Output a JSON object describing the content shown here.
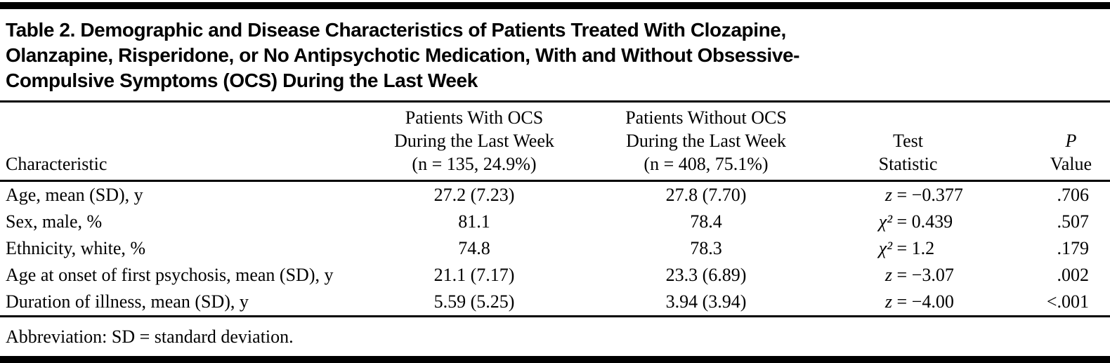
{
  "title_lines": [
    "Table 2. Demographic and Disease Characteristics of Patients Treated With Clozapine,",
    "Olanzapine, Risperidone, or No Antipsychotic Medication, With and Without Obsessive-",
    "Compulsive Symptoms (OCS) During the Last Week"
  ],
  "header": {
    "characteristic": "Characteristic",
    "with_ocs_lines": [
      "Patients With OCS",
      "During the Last Week",
      "(n = 135, 24.9%)"
    ],
    "without_ocs_lines": [
      "Patients Without OCS",
      "During the Last Week",
      "(n = 408, 75.1%)"
    ],
    "test_lines": [
      "Test",
      "Statistic"
    ],
    "p_value_lines": [
      "P",
      "Value"
    ]
  },
  "rows": [
    {
      "characteristic": "Age, mean (SD), y",
      "with_ocs": "27.2 (7.23)",
      "without_ocs": "27.8 (7.70)",
      "test_symbol": "z",
      "test_rest": " = −0.377",
      "p_value": ".706"
    },
    {
      "characteristic": "Sex, male, %",
      "with_ocs": "81.1",
      "without_ocs": "78.4",
      "test_symbol": "χ²",
      "test_rest": " = 0.439",
      "p_value": ".507"
    },
    {
      "characteristic": "Ethnicity, white, %",
      "with_ocs": "74.8",
      "without_ocs": "78.3",
      "test_symbol": "χ²",
      "test_rest": " = 1.2",
      "p_value": ".179"
    },
    {
      "characteristic": "Age at onset of first psychosis, mean (SD), y",
      "with_ocs": "21.1 (7.17)",
      "without_ocs": "23.3 (6.89)",
      "test_symbol": "z",
      "test_rest": " = −3.07",
      "p_value": ".002"
    },
    {
      "characteristic": "Duration of illness, mean (SD), y",
      "with_ocs": "5.59 (5.25)",
      "without_ocs": "3.94 (3.94)",
      "test_symbol": "z",
      "test_rest": " = −4.00",
      "p_value": "<.001"
    }
  ],
  "footnote": "Abbreviation: SD = standard deviation.",
  "colors": {
    "text": "#000000",
    "background": "#ffffff",
    "rule": "#000000"
  }
}
